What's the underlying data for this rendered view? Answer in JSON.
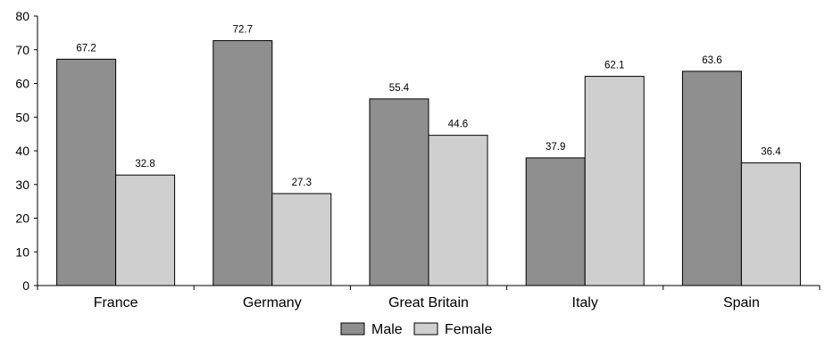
{
  "chart_data": {
    "type": "bar",
    "title": "",
    "xlabel": "",
    "ylabel": "",
    "categories": [
      "France",
      "Germany",
      "Great Britain",
      "Italy",
      "Spain"
    ],
    "series": [
      {
        "name": "Male",
        "values": [
          67.2,
          72.7,
          55.4,
          37.9,
          63.6
        ],
        "color": "#8f8f8f"
      },
      {
        "name": "Female",
        "values": [
          32.8,
          27.3,
          44.6,
          62.1,
          36.4
        ],
        "color": "#cfcfcf"
      }
    ],
    "ylim": [
      0,
      80
    ],
    "yticks": [
      0,
      10,
      20,
      30,
      40,
      50,
      60,
      70,
      80
    ],
    "data_labels": true,
    "grid": false,
    "legend": "bottom"
  }
}
